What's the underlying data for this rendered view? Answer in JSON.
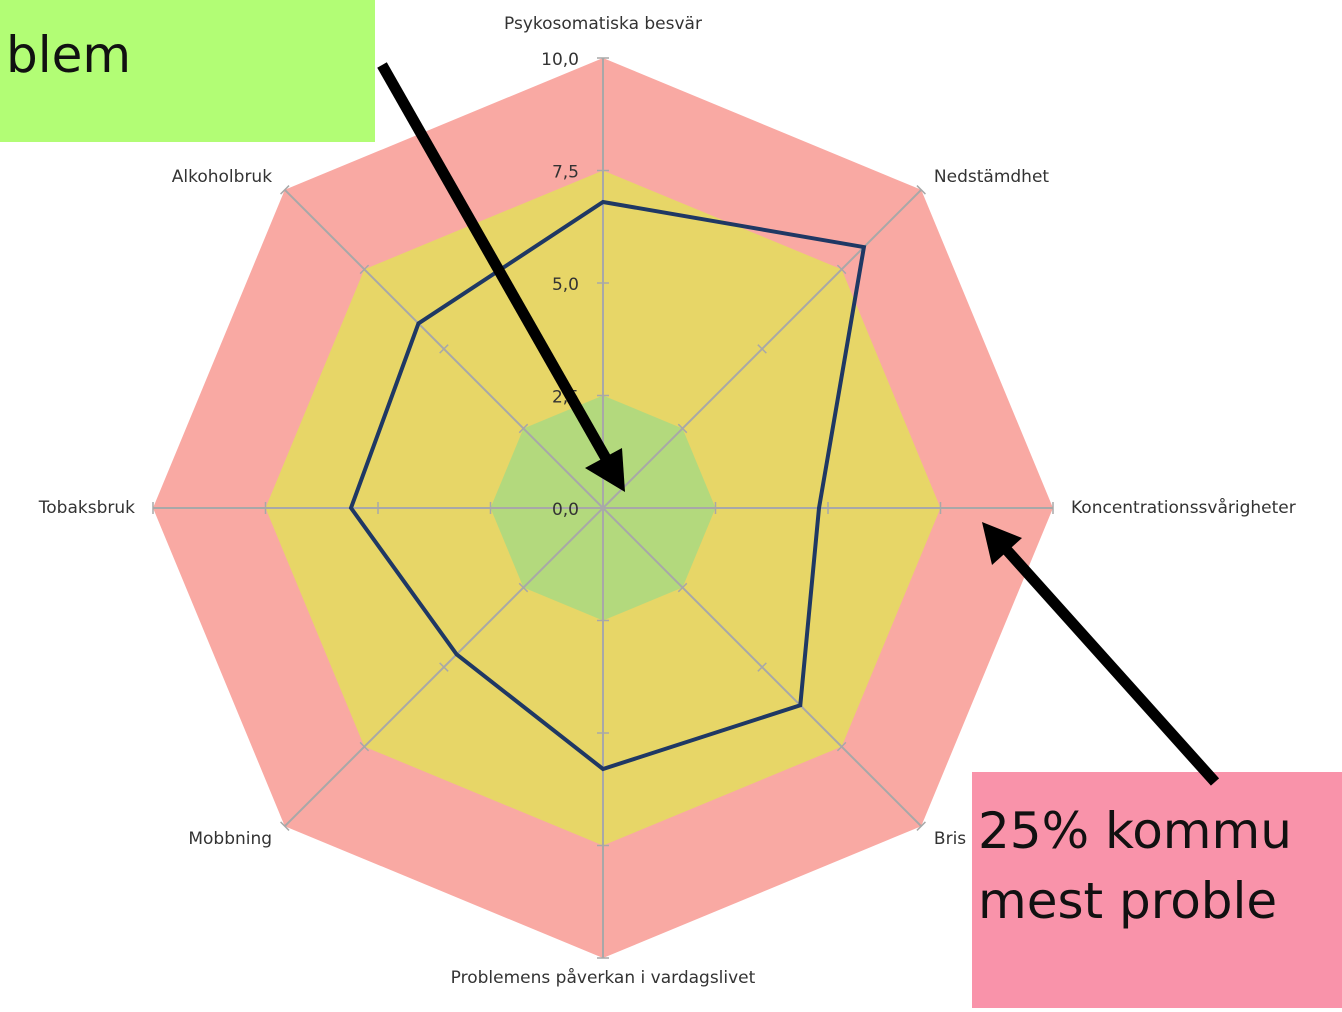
{
  "chart_data": {
    "type": "radar",
    "categories": [
      "Psykosomatiska besvär",
      "Nedstämdhet",
      "Koncentrationssvårigheter",
      "Bris",
      "Problemens påverkan i vardagslivet",
      "Mobbning",
      "Tobaksbruk",
      "Alkoholbruk"
    ],
    "series": [
      {
        "color": "#1f3864",
        "values": [
          6.8,
          8.2,
          4.8,
          6.2,
          5.8,
          4.6,
          5.6,
          5.8
        ]
      }
    ],
    "rlim": [
      0,
      10
    ],
    "rticks": [
      {
        "value": 0,
        "label": "0,0"
      },
      {
        "value": 2.5,
        "label": "2,5"
      },
      {
        "value": 5,
        "label": "5,0"
      },
      {
        "value": 7.5,
        "label": "7,5"
      },
      {
        "value": 10,
        "label": "10,0"
      }
    ],
    "bands": [
      {
        "to": 10,
        "color": "#f9a9a3"
      },
      {
        "to": 7.5,
        "color": "#e7d667"
      },
      {
        "to": 2.5,
        "color": "#b3d97d"
      }
    ],
    "annotations": [
      "blem",
      "25% kommu",
      "mest proble"
    ]
  }
}
